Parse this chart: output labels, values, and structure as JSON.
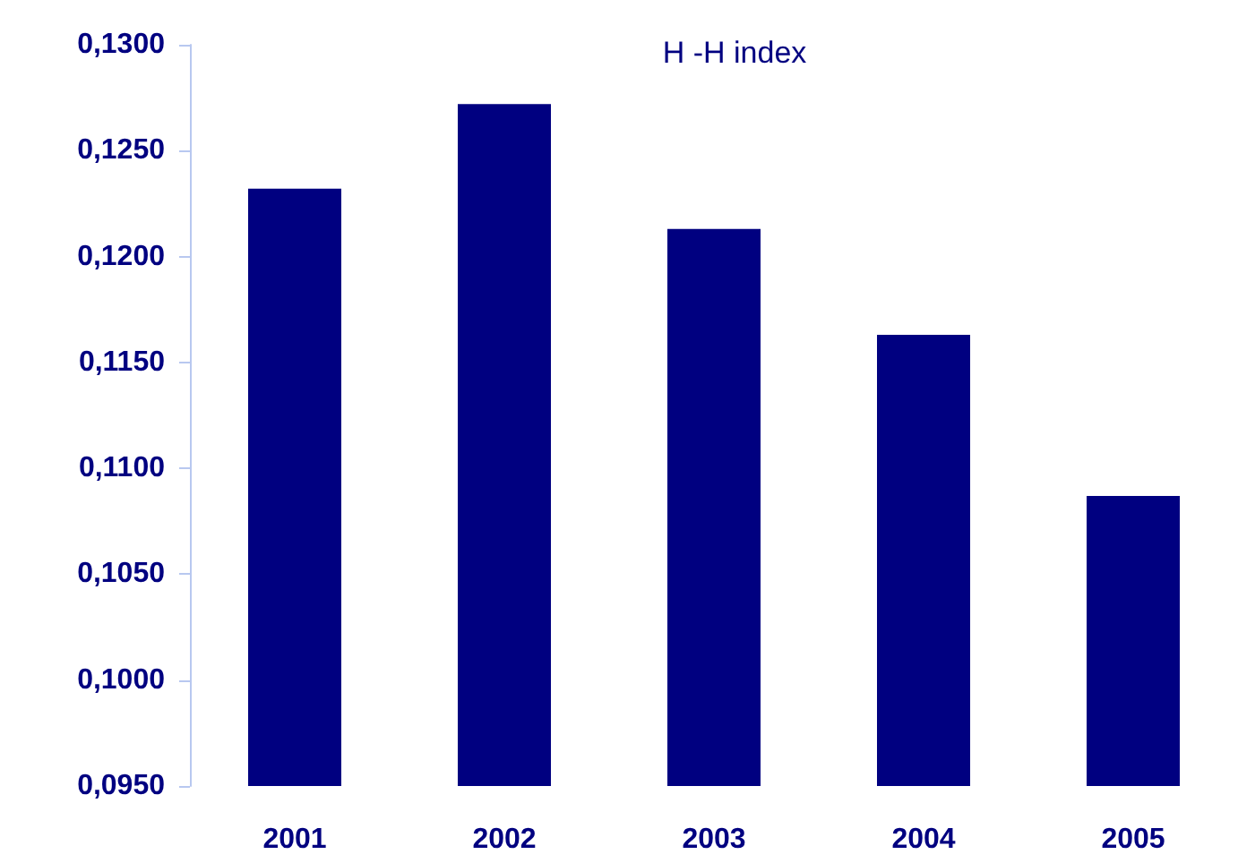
{
  "chart_data": {
    "type": "bar",
    "title": "H -H index",
    "categories": [
      "2001",
      "2002",
      "2003",
      "2004",
      "2005"
    ],
    "values": [
      0.1232,
      0.1272,
      0.1213,
      0.1163,
      0.1087
    ],
    "color": "#000080",
    "ylim": [
      0.095,
      0.13
    ],
    "yticks": [
      {
        "value": 0.095,
        "label": "0,0950"
      },
      {
        "value": 0.1,
        "label": "0,1000"
      },
      {
        "value": 0.105,
        "label": "0,1050"
      },
      {
        "value": 0.11,
        "label": "0,1100"
      },
      {
        "value": 0.115,
        "label": "0,1150"
      },
      {
        "value": 0.12,
        "label": "0,1200"
      },
      {
        "value": 0.125,
        "label": "0,1250"
      },
      {
        "value": 0.13,
        "label": "0,1300"
      }
    ],
    "grid": false
  }
}
